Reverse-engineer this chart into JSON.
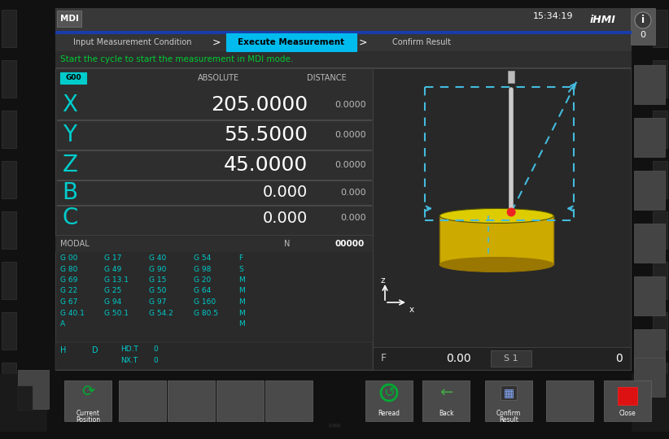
{
  "outer_bg": "#111111",
  "screen_bg": "#2e2e2e",
  "header_bg": "#3a3a3a",
  "panel_bg": "#2a2a2a",
  "dark_panel": "#252525",
  "cyan_color": "#00cccc",
  "cyan_bright": "#00eeff",
  "green_color": "#00cc33",
  "white_color": "#ffffff",
  "light_gray": "#bbbbbb",
  "dark_gray": "#444444",
  "mid_gray": "#555555",
  "blue_bar_color": "#1a3caa",
  "tab_active_bg": "#00bbee",
  "tab_active_fg": "#000000",
  "tab_inactive_fg": "#cccccc",
  "time_text": "15:34:19",
  "ihmi_text": "iHMI",
  "mdi_text": "MDI",
  "tab1": "Input Measurement Condition",
  "tab2": "Execute Measurement",
  "tab3": "Confirm Result",
  "status_text": "Start the cycle to start the measurement in MDI mode.",
  "g00_label": "G00",
  "absolute_label": "ABSOLUTE",
  "distance_label": "DISTANCE",
  "axes": [
    "X",
    "Y",
    "Z",
    "B",
    "C"
  ],
  "absolute_values": [
    "205.0000",
    "55.5000",
    "45.0000",
    "0.000",
    "0.000"
  ],
  "distance_values": [
    "0.0000",
    "0.0000",
    "0.0000",
    "0.000",
    "0.000"
  ],
  "modal_label": "MODAL",
  "n_label": "N",
  "n_value": "00000",
  "modal_col1": [
    "G 00",
    "G 80",
    "G 69",
    "G 22",
    "G 67",
    "G 40.1",
    "A"
  ],
  "modal_col2": [
    "G 17",
    "G 49",
    "G 13.1",
    "G 25",
    "G 94",
    "G 50.1",
    ""
  ],
  "modal_col3": [
    "G 40",
    "G 90",
    "G 15",
    "G 50",
    "G 97",
    "G 54.2",
    ""
  ],
  "modal_col4": [
    "G 54",
    "G 98",
    "G 20",
    "G 64",
    "G 160",
    "G 80.5",
    ""
  ],
  "modal_col5": [
    "F",
    "S",
    "M",
    "M",
    "M",
    "M",
    "M"
  ],
  "h_label": "H",
  "d_label": "D",
  "hdt_label": "HD.T",
  "nxt_label": "NX.T",
  "hdt_val": "0",
  "nxt_val": "0",
  "f_label": "F",
  "f_value": "0.00",
  "s1_label": "S 1",
  "s_value": "0",
  "cyl_color": "#ccaa00",
  "cyl_top_color": "#ddcc00",
  "cyl_dark": "#997700",
  "dash_color": "#44bbdd",
  "probe_color": "#cccccc",
  "red_dot": "#ee2222",
  "btn_gray": "#4a4a4a",
  "btn_border": "#666666",
  "info_bg": "#555555",
  "strip_btn": "#444444"
}
